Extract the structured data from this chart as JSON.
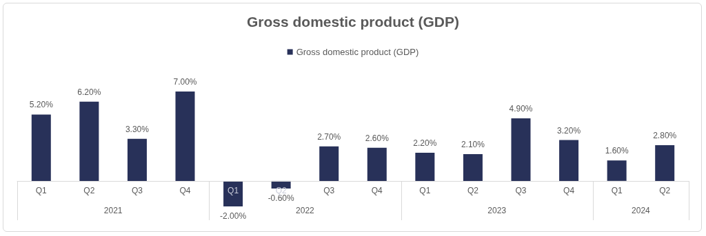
{
  "chart_data": {
    "type": "bar",
    "title": "Gross domestic product (GDP)",
    "categories": [
      "Q1",
      "Q2",
      "Q3",
      "Q4",
      "Q1",
      "Q2",
      "Q3",
      "Q4",
      "Q1",
      "Q2",
      "Q3",
      "Q4",
      "Q1",
      "Q2"
    ],
    "series": [
      {
        "name": "Gross domestic product (GDP)",
        "color": "#283159",
        "values": [
          5.2,
          6.2,
          3.3,
          7.0,
          -2.0,
          -0.6,
          2.7,
          2.6,
          2.2,
          2.1,
          4.9,
          3.2,
          1.6,
          2.8
        ],
        "value_labels": [
          "5.20%",
          "6.20%",
          "3.30%",
          "7.00%",
          "-2.00%",
          "-0.60%",
          "2.70%",
          "2.60%",
          "2.20%",
          "2.10%",
          "4.90%",
          "3.20%",
          "1.60%",
          "2.80%"
        ]
      }
    ],
    "annotations": [
      "2021",
      "2022",
      "2023",
      "2024"
    ],
    "legend": "top"
  }
}
